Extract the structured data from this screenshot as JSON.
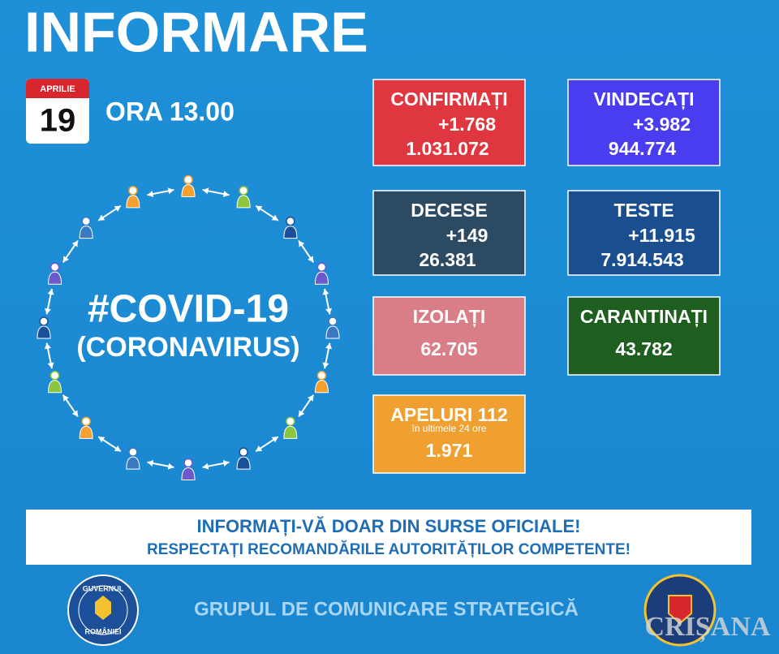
{
  "header": {
    "title": "INFORMARE"
  },
  "date": {
    "month": "APRILIE",
    "day": "19",
    "time": "ORA 13.00"
  },
  "covid": {
    "title": "#COVID-19",
    "subtitle": "(CORONAVIRUS)"
  },
  "boxes": [
    {
      "label": "CONFIRMAȚI",
      "delta": "+1.768",
      "total": "1.031.072"
    },
    {
      "label": "VINDECAȚI",
      "delta": "+3.982",
      "total": "944.774"
    },
    {
      "label": "DECESE",
      "delta": "+149",
      "total": "26.381"
    },
    {
      "label": "TESTE",
      "delta": "+11.915",
      "total": "7.914.543"
    },
    {
      "label": "IZOLAȚI",
      "total": "62.705"
    },
    {
      "label": "CARANTINAȚI",
      "total": "43.782"
    },
    {
      "label": "APELURI 112",
      "note": "în ultimele 24 ore",
      "total": "1.971"
    }
  ],
  "banner": {
    "line1": "INFORMAȚI-VĂ DOAR DIN SURSE OFICIALE!",
    "line2": "RESPECTAȚI RECOMANDĂRILE AUTORITĂȚILOR COMPETENTE!"
  },
  "footer": {
    "text": "GRUPUL DE COMUNICARE STRATEGICĂ",
    "logo_left_top": "GUVERNUL",
    "logo_left_bottom": "ROMÂNIEI",
    "watermark": "CRIȘANA"
  }
}
